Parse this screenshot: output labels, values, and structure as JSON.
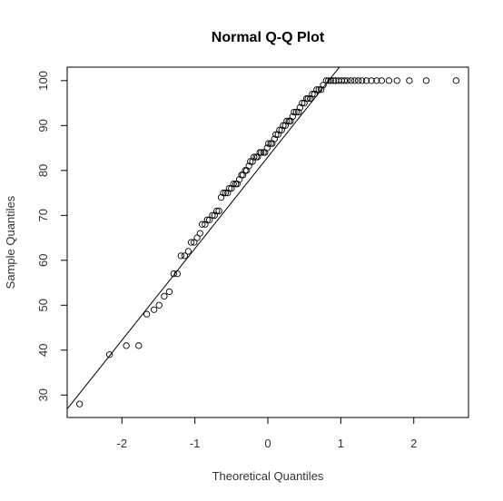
{
  "chart_data": {
    "type": "scatter",
    "title": "Normal Q-Q Plot",
    "xlabel": "Theoretical Quantiles",
    "ylabel": "Sample Quantiles",
    "xlim": [
      -2.75,
      2.75
    ],
    "ylim": [
      25,
      103
    ],
    "x_ticks": [
      -2,
      -1,
      0,
      1,
      2
    ],
    "y_ticks": [
      30,
      40,
      50,
      60,
      70,
      80,
      90,
      100
    ],
    "grid": false,
    "reference_line": {
      "slope": 20.4,
      "intercept": 83,
      "label": "qqline"
    },
    "points": [
      [
        -2.58,
        28
      ],
      [
        -2.17,
        39
      ],
      [
        -1.94,
        41
      ],
      [
        -1.77,
        41
      ],
      [
        -1.66,
        48
      ],
      [
        -1.56,
        49
      ],
      [
        -1.49,
        50
      ],
      [
        -1.42,
        52
      ],
      [
        -1.35,
        53
      ],
      [
        -1.29,
        57
      ],
      [
        -1.24,
        57
      ],
      [
        -1.19,
        61
      ],
      [
        -1.14,
        61
      ],
      [
        -1.09,
        62
      ],
      [
        -1.05,
        64
      ],
      [
        -1.01,
        64
      ],
      [
        -0.97,
        65
      ],
      [
        -0.93,
        66
      ],
      [
        -0.9,
        68
      ],
      [
        -0.86,
        68
      ],
      [
        -0.83,
        69
      ],
      [
        -0.8,
        69
      ],
      [
        -0.76,
        70
      ],
      [
        -0.73,
        70
      ],
      [
        -0.7,
        71
      ],
      [
        -0.67,
        71
      ],
      [
        -0.64,
        74
      ],
      [
        -0.61,
        75
      ],
      [
        -0.58,
        75
      ],
      [
        -0.55,
        75
      ],
      [
        -0.53,
        76
      ],
      [
        -0.5,
        76
      ],
      [
        -0.47,
        77
      ],
      [
        -0.44,
        77
      ],
      [
        -0.42,
        77
      ],
      [
        -0.39,
        78
      ],
      [
        -0.36,
        79
      ],
      [
        -0.34,
        79
      ],
      [
        -0.31,
        80
      ],
      [
        -0.29,
        80
      ],
      [
        -0.26,
        81
      ],
      [
        -0.24,
        82
      ],
      [
        -0.21,
        82
      ],
      [
        -0.19,
        83
      ],
      [
        -0.16,
        83
      ],
      [
        -0.14,
        83
      ],
      [
        -0.11,
        84
      ],
      [
        -0.09,
        84
      ],
      [
        -0.06,
        84
      ],
      [
        -0.04,
        84
      ],
      [
        -0.01,
        85
      ],
      [
        0.01,
        86
      ],
      [
        0.04,
        86
      ],
      [
        0.06,
        86
      ],
      [
        0.09,
        87
      ],
      [
        0.11,
        88
      ],
      [
        0.14,
        88
      ],
      [
        0.16,
        89
      ],
      [
        0.19,
        89
      ],
      [
        0.21,
        90
      ],
      [
        0.24,
        90
      ],
      [
        0.26,
        91
      ],
      [
        0.29,
        91
      ],
      [
        0.31,
        91
      ],
      [
        0.34,
        92
      ],
      [
        0.36,
        93
      ],
      [
        0.39,
        93
      ],
      [
        0.42,
        93
      ],
      [
        0.44,
        94
      ],
      [
        0.47,
        95
      ],
      [
        0.5,
        95
      ],
      [
        0.53,
        96
      ],
      [
        0.55,
        96
      ],
      [
        0.58,
        96
      ],
      [
        0.61,
        97
      ],
      [
        0.64,
        97
      ],
      [
        0.67,
        98
      ],
      [
        0.7,
        98
      ],
      [
        0.73,
        98
      ],
      [
        0.76,
        99
      ],
      [
        0.8,
        100
      ],
      [
        0.83,
        100
      ],
      [
        0.86,
        100
      ],
      [
        0.9,
        100
      ],
      [
        0.93,
        100
      ],
      [
        0.97,
        100
      ],
      [
        1.01,
        100
      ],
      [
        1.05,
        100
      ],
      [
        1.09,
        100
      ],
      [
        1.14,
        100
      ],
      [
        1.19,
        100
      ],
      [
        1.24,
        100
      ],
      [
        1.29,
        100
      ],
      [
        1.35,
        100
      ],
      [
        1.42,
        100
      ],
      [
        1.49,
        100
      ],
      [
        1.56,
        100
      ],
      [
        1.66,
        100
      ],
      [
        1.77,
        100
      ],
      [
        1.94,
        100
      ],
      [
        2.17,
        100
      ],
      [
        2.58,
        100
      ]
    ]
  }
}
